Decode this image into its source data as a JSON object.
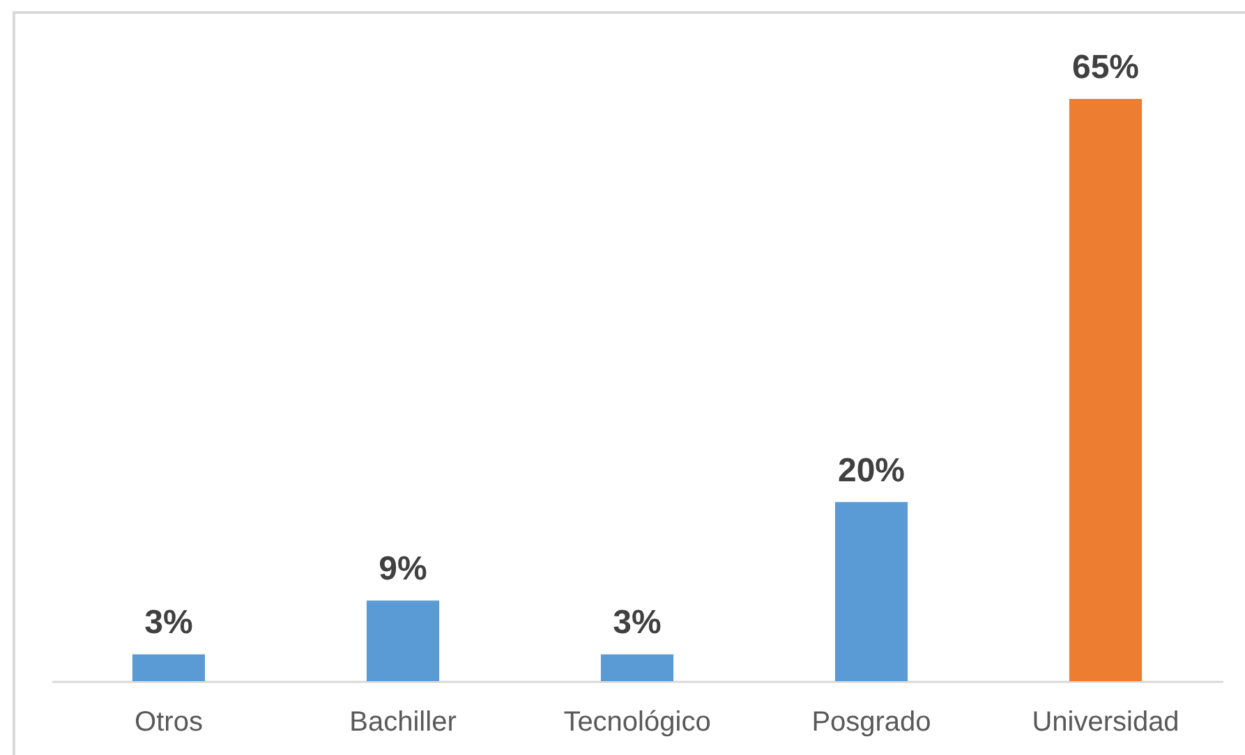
{
  "chart_data": {
    "type": "bar",
    "categories": [
      "Otros",
      "Bachiller",
      "Tecnológico",
      "Posgrado",
      "Universidad"
    ],
    "values": [
      3,
      9,
      3,
      20,
      65
    ],
    "colors": [
      "#5b9bd5",
      "#5b9bd5",
      "#5b9bd5",
      "#5b9bd5",
      "#ed7d31"
    ],
    "value_labels": [
      "3%",
      "9%",
      "3%",
      "20%",
      "65%"
    ],
    "tick_labels": "x"
  }
}
